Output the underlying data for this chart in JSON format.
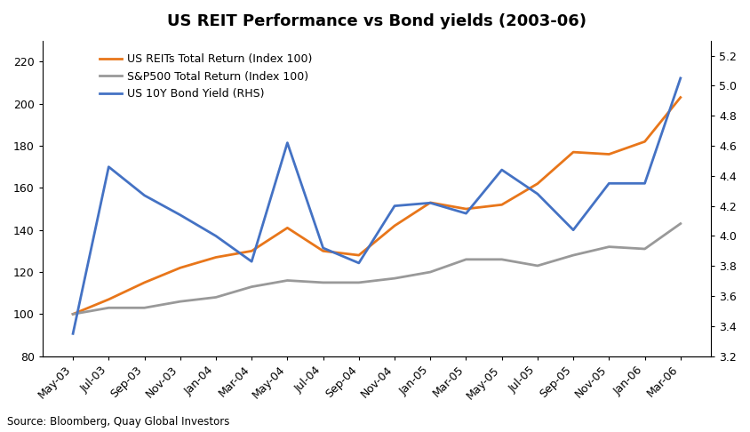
{
  "title": "US REIT Performance vs Bond yields (2003-06)",
  "source_text": "Source: Bloomberg, Quay Global Investors",
  "x_labels": [
    "May-03",
    "Jul-03",
    "Sep-03",
    "Nov-03",
    "Jan-04",
    "Mar-04",
    "May-04",
    "Jul-04",
    "Sep-04",
    "Nov-04",
    "Jan-05",
    "Mar-05",
    "May-05",
    "Jul-05",
    "Sep-05",
    "Nov-05",
    "Jan-06",
    "Mar-06"
  ],
  "reit": [
    100,
    107,
    115,
    122,
    127,
    130,
    141,
    130,
    128,
    142,
    153,
    150,
    152,
    162,
    177,
    176,
    182,
    203
  ],
  "sp500": [
    100,
    103,
    103,
    106,
    108,
    113,
    116,
    115,
    115,
    117,
    120,
    126,
    126,
    123,
    128,
    132,
    131,
    143
  ],
  "bond": [
    3.35,
    4.46,
    4.27,
    4.14,
    4.0,
    3.83,
    4.62,
    3.92,
    3.82,
    4.2,
    4.22,
    4.15,
    4.44,
    4.28,
    4.04,
    4.35,
    4.35,
    5.05
  ],
  "reit_color": "#E8761A",
  "sp500_color": "#999999",
  "bond_color": "#4472C4",
  "ylim_left": [
    80,
    230
  ],
  "ylim_right": [
    3.2,
    5.3
  ],
  "yticks_left": [
    80,
    100,
    120,
    140,
    160,
    180,
    200,
    220
  ],
  "yticks_right": [
    3.2,
    3.4,
    3.6,
    3.8,
    4.0,
    4.2,
    4.4,
    4.6,
    4.8,
    5.0,
    5.2
  ],
  "legend_reit": "US REITs Total Return (Index 100)",
  "legend_sp500": "S&P500 Total Return (Index 100)",
  "legend_bond": "US 10Y Bond Yield (RHS)",
  "background_color": "#FFFFFF",
  "title_fontsize": 13,
  "tick_fontsize": 9,
  "legend_fontsize": 9,
  "source_fontsize": 8.5,
  "line_width": 2.0
}
